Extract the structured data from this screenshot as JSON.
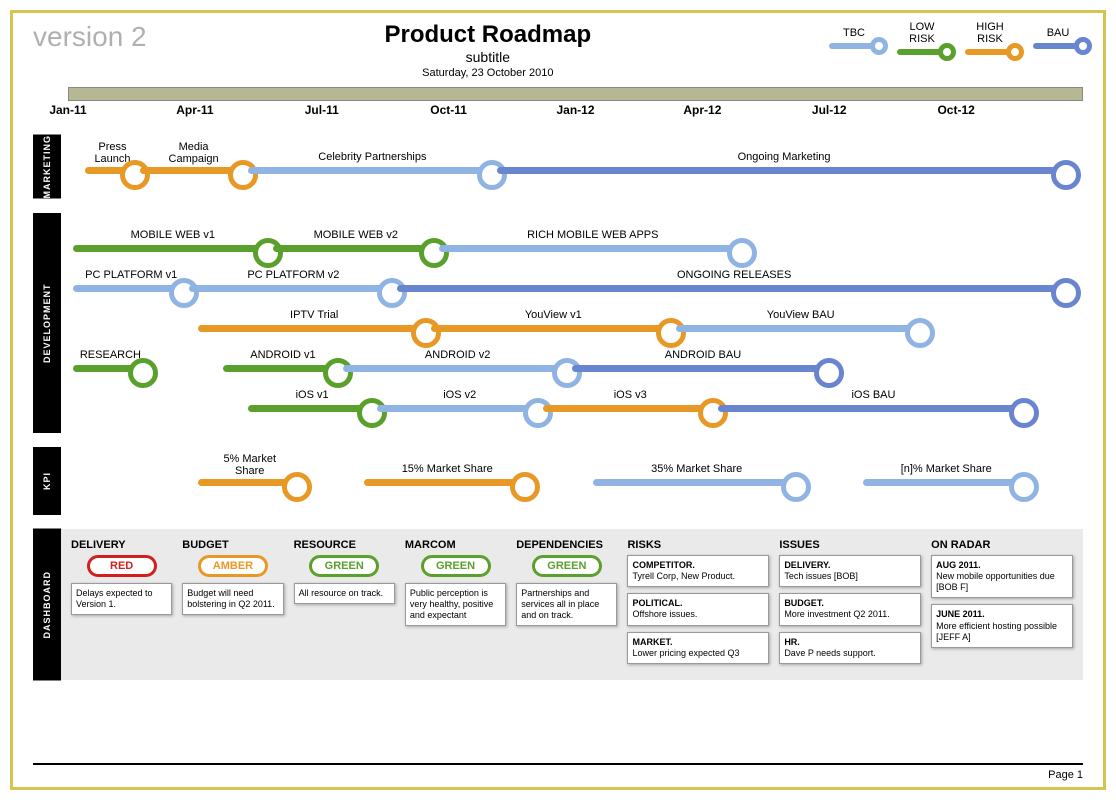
{
  "meta": {
    "version_label": "version 2",
    "title": "Product Roadmap",
    "subtitle": "subtitle",
    "date": "Saturday, 23 October 2010",
    "page_label": "Page 1"
  },
  "colors": {
    "tbc": "#8fb4e3",
    "low": "#5aa02c",
    "high": "#e89824",
    "bau": "#6a85d0",
    "axis_bg": "#b6b893",
    "dashboard_bg": "#eaeaea",
    "red_border": "#d02020",
    "amber_border": "#e89824",
    "green_border": "#5aa02c"
  },
  "legend": [
    {
      "label": "TBC",
      "color_key": "tbc"
    },
    {
      "label": "LOW\nRISK",
      "color_key": "low"
    },
    {
      "label": "HIGH\nRISK",
      "color_key": "high"
    },
    {
      "label": "BAU",
      "color_key": "bau"
    }
  ],
  "timeline": {
    "start": 0,
    "end": 24,
    "ticks": [
      {
        "label": "Jan-11",
        "pos": 0
      },
      {
        "label": "Apr-11",
        "pos": 3
      },
      {
        "label": "Jul-11",
        "pos": 6
      },
      {
        "label": "Oct-11",
        "pos": 9
      },
      {
        "label": "Jan-12",
        "pos": 12
      },
      {
        "label": "Apr-12",
        "pos": 15
      },
      {
        "label": "Jul-12",
        "pos": 18
      },
      {
        "label": "Oct-12",
        "pos": 21
      }
    ]
  },
  "sections": [
    {
      "name": "MARKETING",
      "lanes": [
        {
          "bars": [
            {
              "label": "Press\nLaunch",
              "start": 0.3,
              "end": 1.6,
              "risk": "high"
            },
            {
              "label": "Media\nCampaign",
              "start": 1.6,
              "end": 4.2,
              "risk": "high"
            },
            {
              "label": "Celebrity Partnerships",
              "start": 4.2,
              "end": 10.2,
              "risk": "tbc"
            },
            {
              "label": "Ongoing Marketing",
              "start": 10.2,
              "end": 24,
              "risk": "bau"
            }
          ]
        }
      ]
    },
    {
      "name": "DEVELOPMENT",
      "lanes": [
        {
          "bars": [
            {
              "label": "MOBILE WEB v1",
              "start": 0,
              "end": 4.8,
              "risk": "low"
            },
            {
              "label": "MOBILE WEB v2",
              "start": 4.8,
              "end": 8.8,
              "risk": "low"
            },
            {
              "label": "RICH MOBILE WEB APPS",
              "start": 8.8,
              "end": 16.2,
              "risk": "tbc"
            }
          ]
        },
        {
          "bars": [
            {
              "label": "PC PLATFORM v1",
              "start": 0,
              "end": 2.8,
              "risk": "tbc"
            },
            {
              "label": "PC PLATFORM v2",
              "start": 2.8,
              "end": 7.8,
              "risk": "tbc"
            },
            {
              "label": "ONGOING RELEASES",
              "start": 7.8,
              "end": 24,
              "risk": "bau"
            }
          ]
        },
        {
          "bars": [
            {
              "label": "IPTV Trial",
              "start": 3,
              "end": 8.6,
              "risk": "high"
            },
            {
              "label": "YouView v1",
              "start": 8.6,
              "end": 14.5,
              "risk": "high"
            },
            {
              "label": "YouView BAU",
              "start": 14.5,
              "end": 20.5,
              "risk": "tbc"
            }
          ]
        },
        {
          "bars": [
            {
              "label": "RESEARCH",
              "start": 0,
              "end": 1.8,
              "risk": "low"
            },
            {
              "label": "ANDROID v1",
              "start": 3.6,
              "end": 6.5,
              "risk": "low"
            },
            {
              "label": "ANDROID v2",
              "start": 6.5,
              "end": 12,
              "risk": "tbc"
            },
            {
              "label": "ANDROID BAU",
              "start": 12,
              "end": 18.3,
              "risk": "bau"
            }
          ]
        },
        {
          "bars": [
            {
              "label": "iOS v1",
              "start": 4.2,
              "end": 7.3,
              "risk": "low"
            },
            {
              "label": "iOS v2",
              "start": 7.3,
              "end": 11.3,
              "risk": "tbc"
            },
            {
              "label": "iOS v3",
              "start": 11.3,
              "end": 15.5,
              "risk": "high"
            },
            {
              "label": "iOS BAU",
              "start": 15.5,
              "end": 23,
              "risk": "bau"
            }
          ]
        }
      ]
    },
    {
      "name": "KPI",
      "lanes": [
        {
          "bars": [
            {
              "label": "5% Market\nShare",
              "start": 3,
              "end": 5.5,
              "risk": "high"
            },
            {
              "label": "15% Market Share",
              "start": 7,
              "end": 11,
              "risk": "high"
            },
            {
              "label": "35% Market Share",
              "start": 12.5,
              "end": 17.5,
              "risk": "tbc"
            },
            {
              "label": "[n]% Market Share",
              "start": 19,
              "end": 23,
              "risk": "tbc"
            }
          ]
        }
      ]
    }
  ],
  "dashboard": {
    "name": "DASHBOARD",
    "columns": [
      {
        "title": "DELIVERY",
        "status": {
          "text": "RED",
          "color_key": "red_border"
        },
        "notes": [
          "Delays expected to Version 1."
        ]
      },
      {
        "title": "BUDGET",
        "status": {
          "text": "AMBER",
          "color_key": "amber_border"
        },
        "notes": [
          "Budget will need bolstering in Q2 2011."
        ]
      },
      {
        "title": "RESOURCE",
        "status": {
          "text": "GREEN",
          "color_key": "green_border"
        },
        "notes": [
          "All resource on track."
        ]
      },
      {
        "title": "MARCOM",
        "status": {
          "text": "GREEN",
          "color_key": "green_border"
        },
        "notes": [
          "Public perception is very healthy, positive and expectant"
        ]
      },
      {
        "title": "DEPENDENCIES",
        "status": {
          "text": "GREEN",
          "color_key": "green_border"
        },
        "notes": [
          "Partnerships and services all in place and on track."
        ]
      },
      {
        "title": "RISKS",
        "wide": true,
        "notes": [
          "COMPETITOR.\nTyrell Corp, New Product.",
          "POLITICAL.\nOffshore issues.",
          "MARKET.\nLower pricing expected Q3"
        ]
      },
      {
        "title": "ISSUES",
        "wide": true,
        "notes": [
          "DELIVERY.\nTech issues [BOB]",
          "BUDGET.\nMore investment Q2 2011.",
          "HR.\nDave P needs support."
        ]
      },
      {
        "title": "ON RADAR",
        "wide": true,
        "notes": [
          "AUG 2011.\nNew mobile opportunities due [BOB F]",
          "JUNE 2011.\nMore efficient hosting possible [JEFF A]"
        ]
      }
    ]
  }
}
